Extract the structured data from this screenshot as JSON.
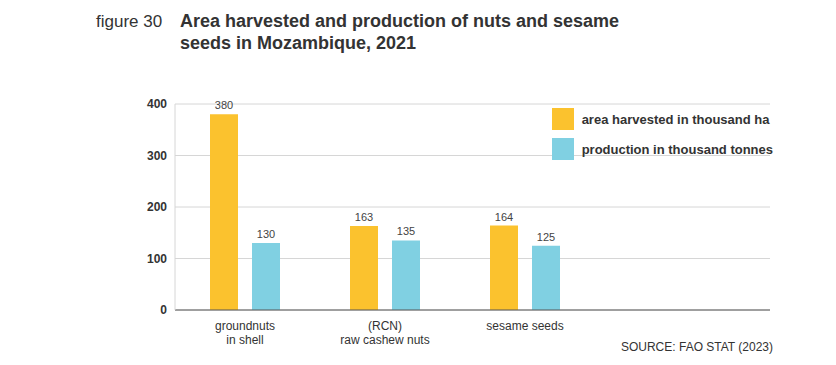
{
  "chart_data": {
    "type": "bar",
    "label": "figure 30",
    "title": "Area harvested and production of nuts and sesame seeds in Mozambique, 2021",
    "source": "SOURCE: FAO STAT (2023)",
    "categories": [
      "groundnuts\nin shell",
      "(RCN)\nraw cashew nuts",
      "sesame seeds"
    ],
    "series": [
      {
        "name": "area harvested in thousand ha",
        "color": "#fbc22e",
        "values": [
          380,
          163,
          164
        ]
      },
      {
        "name": "production in thousand tonnes",
        "color": "#80d0e2",
        "values": [
          130,
          135,
          125
        ]
      }
    ],
    "ylim": [
      0,
      400
    ],
    "yticks": [
      0,
      100,
      200,
      300,
      400
    ],
    "grid": true,
    "data_labels": true,
    "legend": "top-right"
  }
}
